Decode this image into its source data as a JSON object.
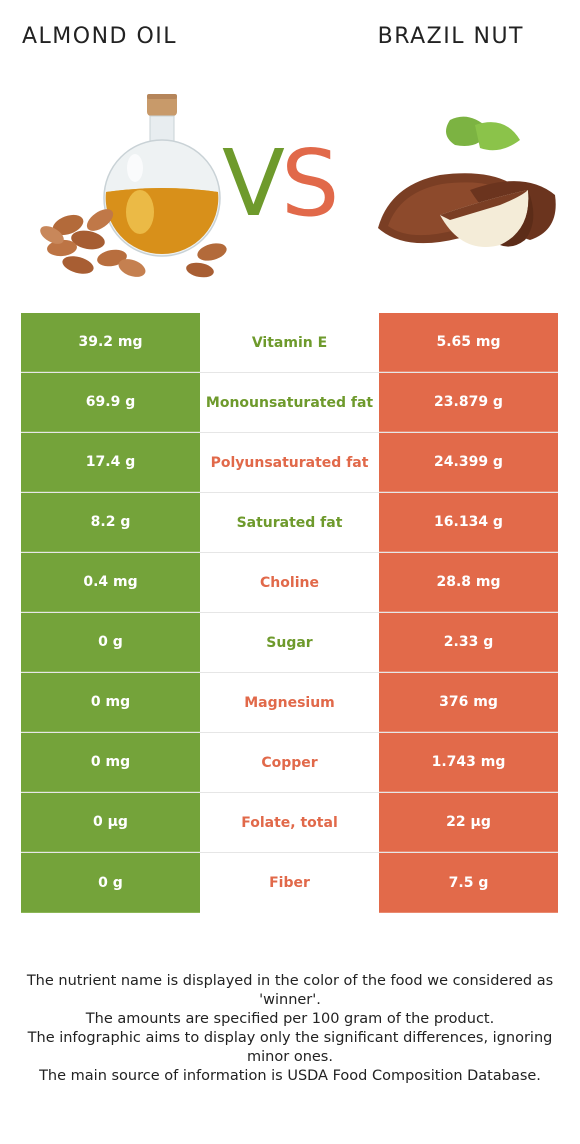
{
  "header": {
    "left_food": "ALMOND OIL",
    "right_food": "BRAZIL NUT",
    "vs_v": "V",
    "vs_s": "S"
  },
  "colors": {
    "left_accent": "#74a33a",
    "right_accent": "#e26a4a"
  },
  "rows": [
    {
      "left": "39.2 mg",
      "nutrient": "Vitamin E",
      "right": "5.65 mg",
      "winner": "left"
    },
    {
      "left": "69.9 g",
      "nutrient": "Monounsaturated fat",
      "right": "23.879 g",
      "winner": "left"
    },
    {
      "left": "17.4 g",
      "nutrient": "Polyunsaturated fat",
      "right": "24.399 g",
      "winner": "right"
    },
    {
      "left": "8.2 g",
      "nutrient": "Saturated fat",
      "right": "16.134 g",
      "winner": "left"
    },
    {
      "left": "0.4 mg",
      "nutrient": "Choline",
      "right": "28.8 mg",
      "winner": "right"
    },
    {
      "left": "0 g",
      "nutrient": "Sugar",
      "right": "2.33 g",
      "winner": "left"
    },
    {
      "left": "0 mg",
      "nutrient": "Magnesium",
      "right": "376 mg",
      "winner": "right"
    },
    {
      "left": "0 mg",
      "nutrient": "Copper",
      "right": "1.743 mg",
      "winner": "right"
    },
    {
      "left": "0 µg",
      "nutrient": "Folate, total",
      "right": "22 µg",
      "winner": "right"
    },
    {
      "left": "0 g",
      "nutrient": "Fiber",
      "right": "7.5 g",
      "winner": "right"
    }
  ],
  "footer": {
    "line1": "The nutrient name is displayed in the color of the food we considered as 'winner'.",
    "line2": "The amounts are specified per 100 gram of the product.",
    "line3": "The infographic aims to display only the significant differences, ignoring minor ones.",
    "line4": "The main source of information is USDA Food Composition Database."
  }
}
